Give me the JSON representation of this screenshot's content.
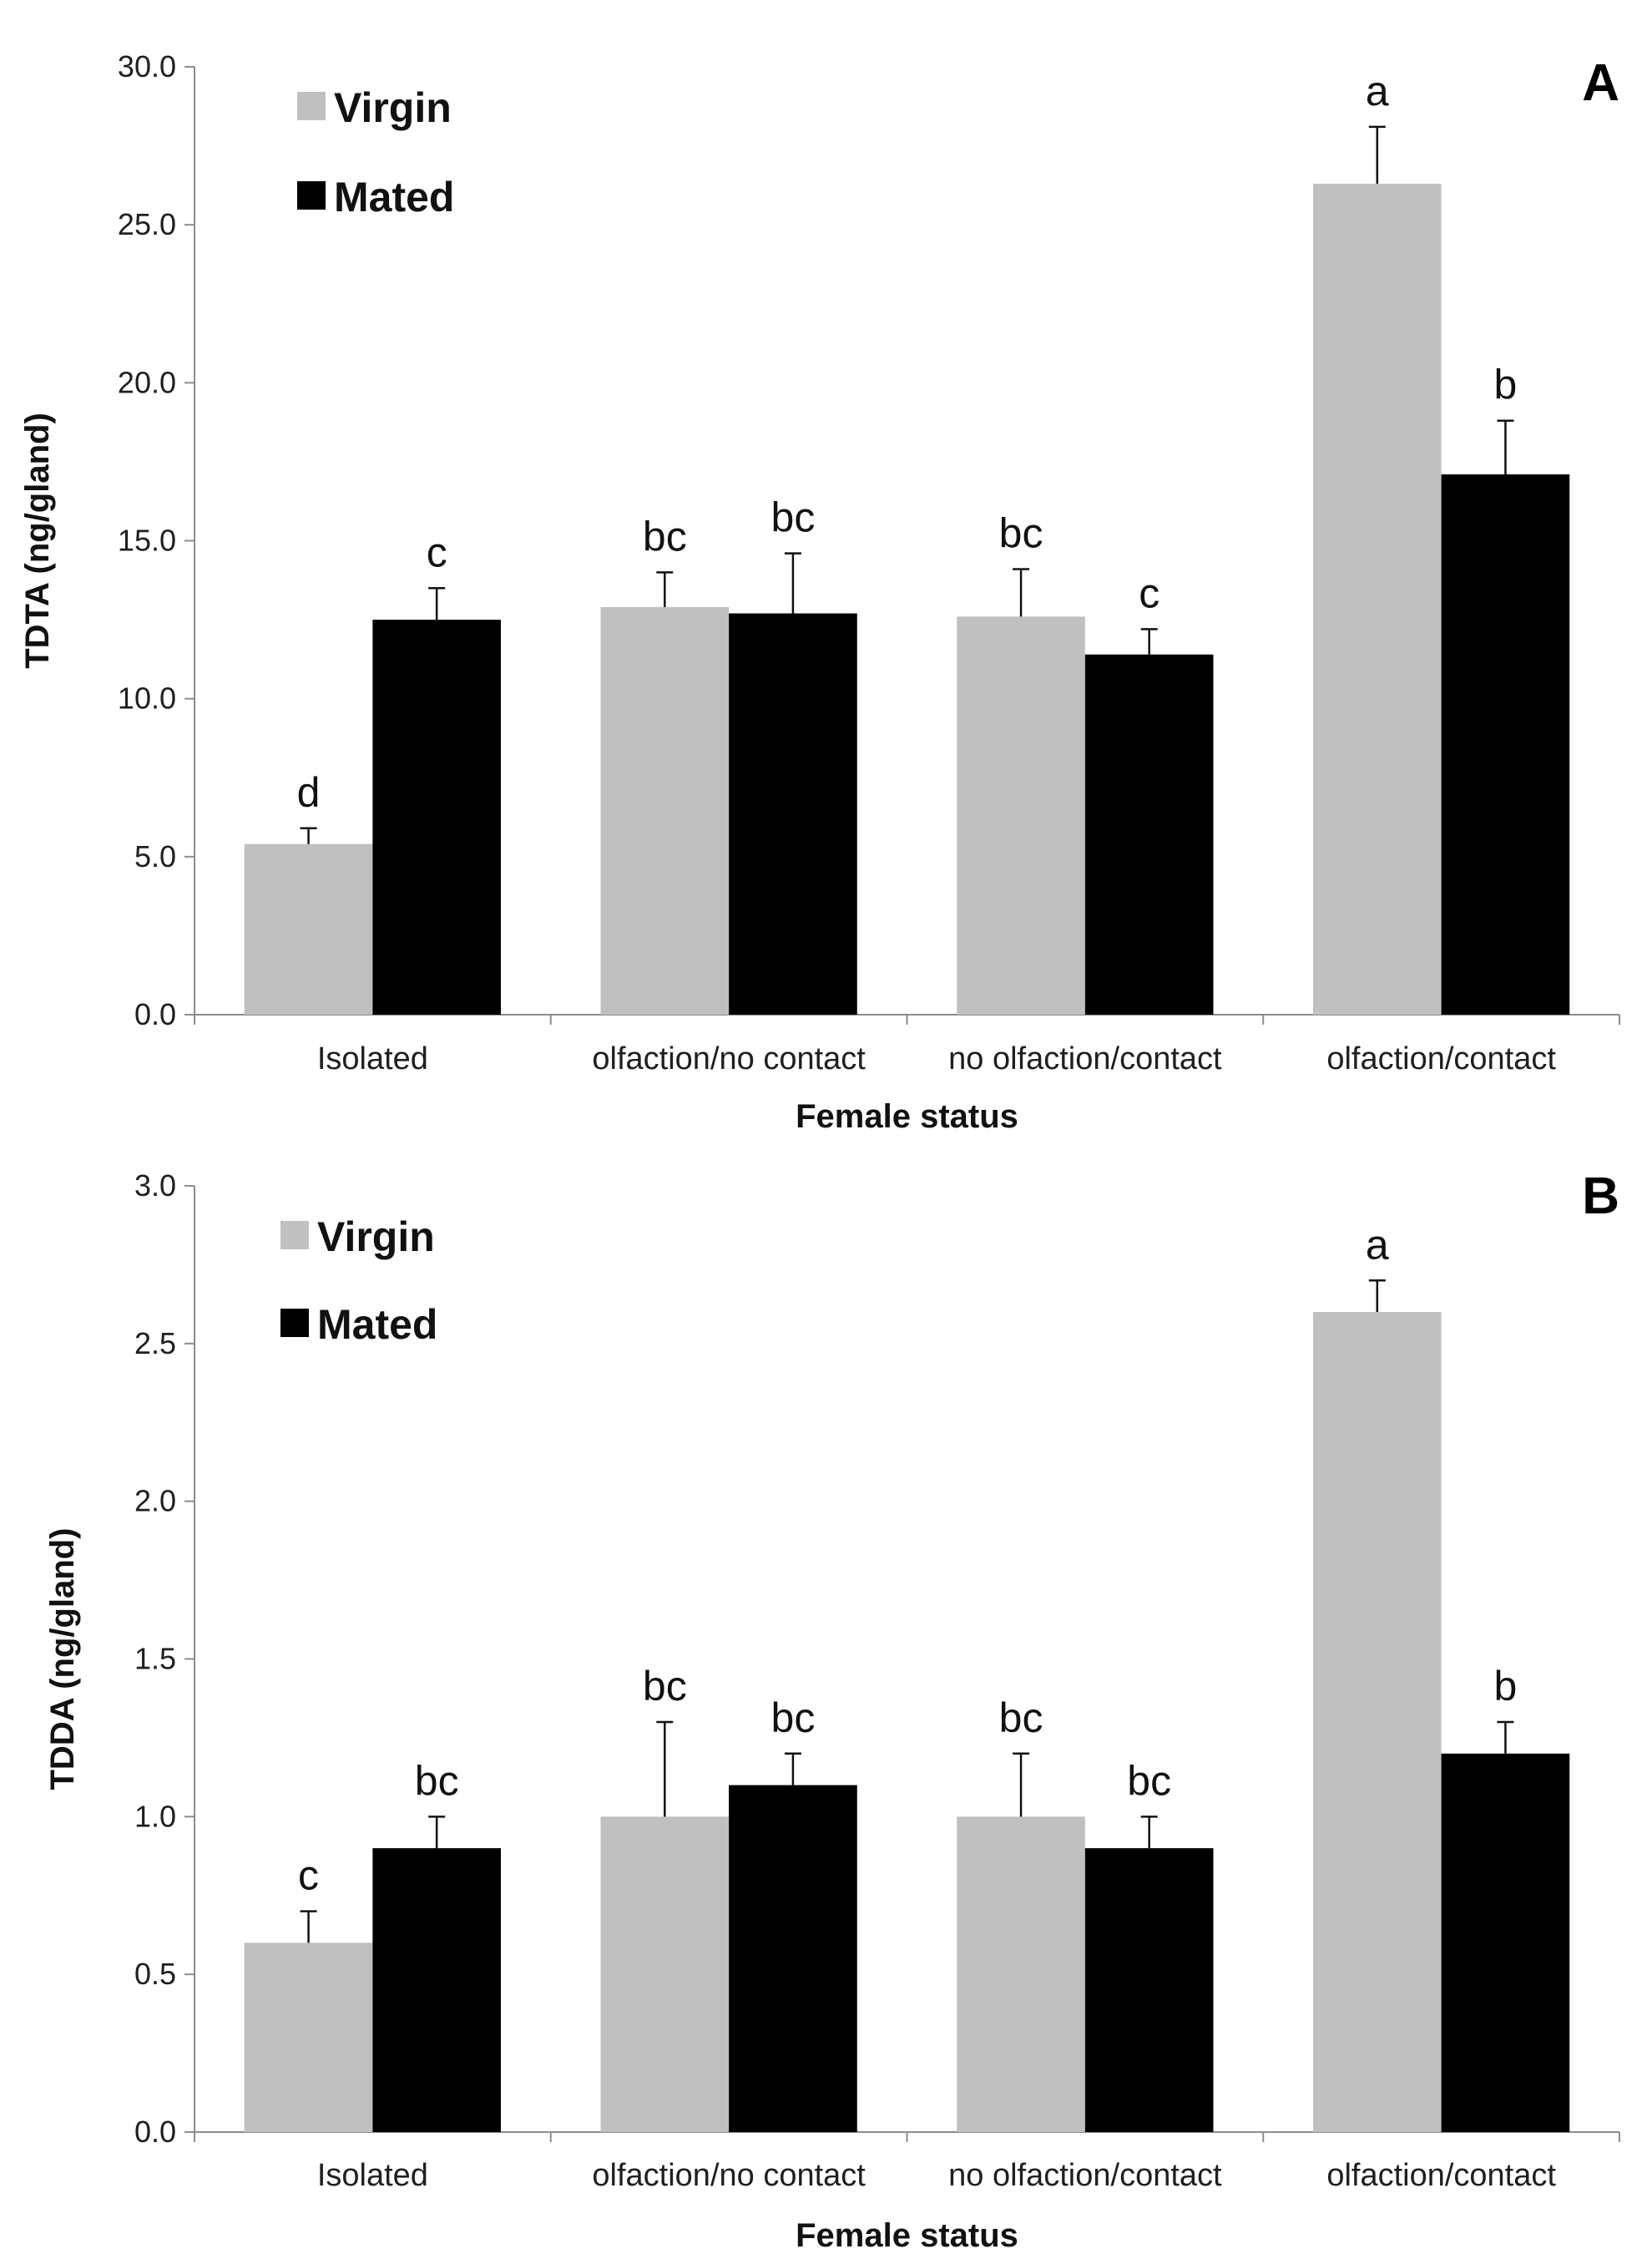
{
  "chart_data": [
    {
      "type": "bar",
      "panel_label": "A",
      "xlabel": "Female status",
      "ylabel": "TDTA (ng/gland)",
      "ylim": [
        0,
        30
      ],
      "yticks": [
        "0.0",
        "5.0",
        "10.0",
        "15.0",
        "20.0",
        "25.0",
        "30.0"
      ],
      "ytick_values": [
        0,
        5,
        10,
        15,
        20,
        25,
        30
      ],
      "categories": [
        "Isolated",
        "olfaction/no contact",
        "no olfaction/contact",
        "olfaction/contact"
      ],
      "legend_position": "top-left",
      "grid": false,
      "series": [
        {
          "name": "Virgin",
          "color": "#c0c0c0",
          "values": [
            5.4,
            12.9,
            12.6,
            26.3
          ],
          "errors": [
            0.5,
            1.1,
            1.5,
            1.8
          ],
          "sig": [
            "d",
            "bc",
            "bc",
            "a"
          ]
        },
        {
          "name": "Mated",
          "color": "#000000",
          "values": [
            12.5,
            12.7,
            11.4,
            17.1
          ],
          "errors": [
            1.0,
            1.9,
            0.8,
            1.7
          ],
          "sig": [
            "c",
            "bc",
            "c",
            "b"
          ]
        }
      ]
    },
    {
      "type": "bar",
      "panel_label": "B",
      "xlabel": "Female status",
      "ylabel": "TDDA (ng/gland)",
      "ylim": [
        0,
        3
      ],
      "yticks": [
        "0.0",
        "0.5",
        "1.0",
        "1.5",
        "2.0",
        "2.5",
        "3.0"
      ],
      "ytick_values": [
        0,
        0.5,
        1,
        1.5,
        2,
        2.5,
        3
      ],
      "categories": [
        "Isolated",
        "olfaction/no contact",
        "no olfaction/contact",
        "olfaction/contact"
      ],
      "legend_position": "top-left",
      "grid": false,
      "series": [
        {
          "name": "Virgin",
          "color": "#c0c0c0",
          "values": [
            0.6,
            1.0,
            1.0,
            2.6
          ],
          "errors": [
            0.1,
            0.3,
            0.2,
            0.1
          ],
          "sig": [
            "c",
            "bc",
            "bc",
            "a"
          ]
        },
        {
          "name": "Mated",
          "color": "#000000",
          "values": [
            0.9,
            1.1,
            0.9,
            1.2
          ],
          "errors": [
            0.1,
            0.1,
            0.1,
            0.1
          ],
          "sig": [
            "bc",
            "bc",
            "bc",
            "b"
          ]
        }
      ]
    }
  ]
}
